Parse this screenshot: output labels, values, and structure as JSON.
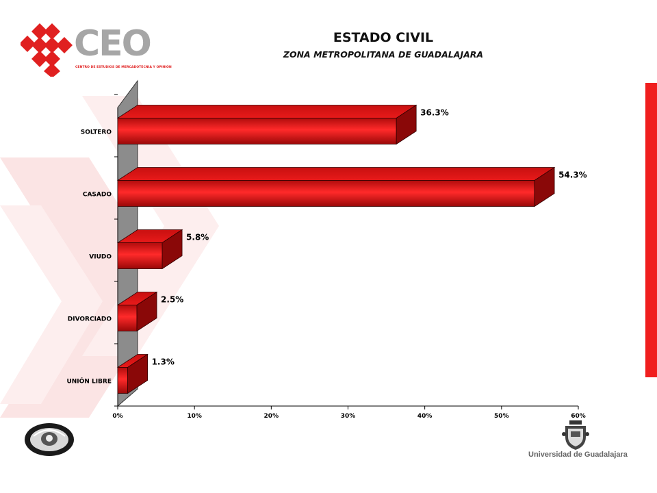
{
  "header": {
    "title": "ESTADO CIVIL",
    "subtitle": "ZONA METROPOLITANA DE GUADALAJARA"
  },
  "logo": {
    "word": "CEO",
    "tagline": "CENTRO DE ESTUDIOS DE MERCADOTECNIA Y OPINIÓN"
  },
  "footer": {
    "university": "Universidad de Guadalajara"
  },
  "colors": {
    "bar": "#e81a1a",
    "bar_dark": "#8a0808",
    "accent_strip": "#f01e1e",
    "logo_red": "#e02020",
    "logo_gray": "#a6a6a6"
  },
  "chart_data": {
    "type": "bar",
    "orientation": "horizontal",
    "style": "3d",
    "categories": [
      "SOLTERO",
      "CASADO",
      "VIUDO",
      "DIVORCIADO",
      "UNIÓN LIBRE"
    ],
    "values": [
      36.3,
      54.3,
      5.8,
      2.5,
      1.3
    ],
    "value_labels": [
      "36.3%",
      "54.3%",
      "5.8%",
      "2.5%",
      "1.3%"
    ],
    "x_ticks": [
      "0%",
      "10%",
      "20%",
      "30%",
      "40%",
      "50%",
      "60%"
    ],
    "xlim": [
      0,
      60
    ],
    "title": "",
    "xlabel": "",
    "ylabel": "",
    "grid": false,
    "legend": false
  }
}
